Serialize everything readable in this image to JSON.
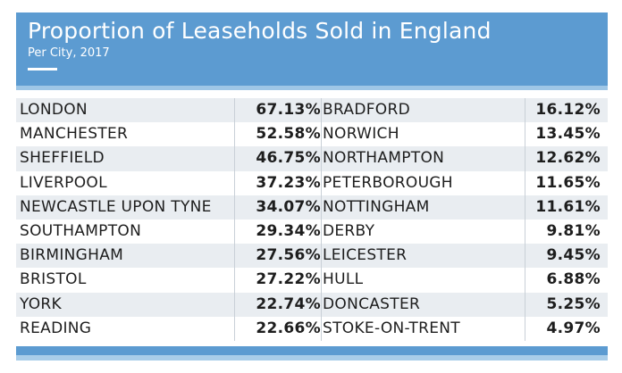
{
  "chart_data": {
    "type": "table",
    "title": "Proportion of Leaseholds Sold in England",
    "subtitle": "Per City, 2017",
    "rows": [
      {
        "left_city": "LONDON",
        "left_value": "67.13%",
        "right_city": "BRADFORD",
        "right_value": "16.12%"
      },
      {
        "left_city": "MANCHESTER",
        "left_value": "52.58%",
        "right_city": "NORWICH",
        "right_value": "13.45%"
      },
      {
        "left_city": "SHEFFIELD",
        "left_value": "46.75%",
        "right_city": "NORTHAMPTON",
        "right_value": "12.62%"
      },
      {
        "left_city": "LIVERPOOL",
        "left_value": "37.23%",
        "right_city": "PETERBOROUGH",
        "right_value": "11.65%"
      },
      {
        "left_city": "NEWCASTLE UPON TYNE",
        "left_value": "34.07%",
        "right_city": "NOTTINGHAM",
        "right_value": "11.61%"
      },
      {
        "left_city": "SOUTHAMPTON",
        "left_value": "29.34%",
        "right_city": "DERBY",
        "right_value": "9.81%"
      },
      {
        "left_city": "BIRMINGHAM",
        "left_value": "27.56%",
        "right_city": "LEICESTER",
        "right_value": "9.45%"
      },
      {
        "left_city": "BRISTOL",
        "left_value": "27.22%",
        "right_city": "HULL",
        "right_value": "6.88%"
      },
      {
        "left_city": "YORK",
        "left_value": "22.74%",
        "right_city": "DONCASTER",
        "right_value": "5.25%"
      },
      {
        "left_city": "READING",
        "left_value": "22.66%",
        "right_city": "STOKE-ON-TRENT",
        "right_value": "4.97%"
      }
    ]
  },
  "colors": {
    "header": "#5c9bd1",
    "accent_light": "#a9cde9",
    "row_alt": "#e9edf1",
    "text": "#1d1d1d"
  }
}
